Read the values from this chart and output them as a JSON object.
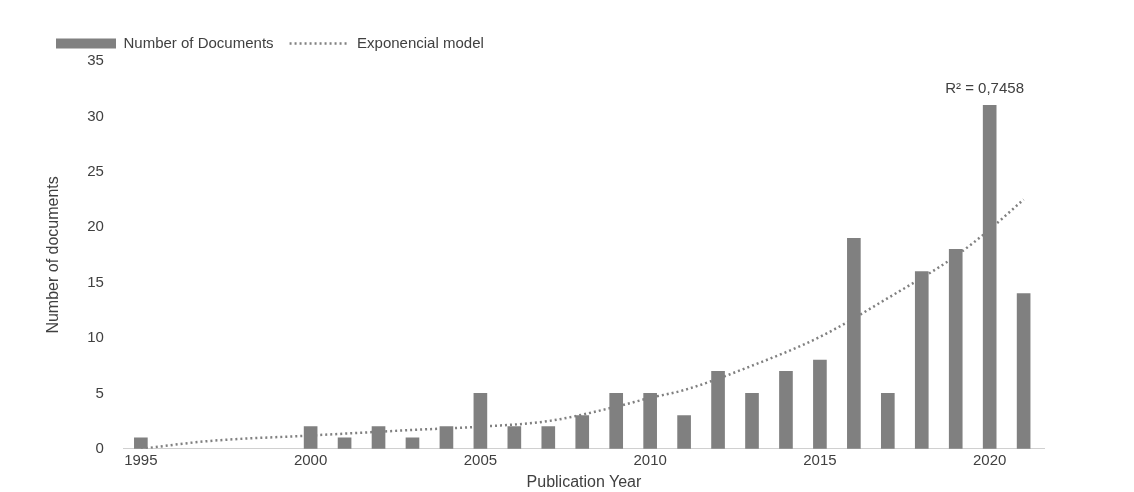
{
  "chart_data": {
    "type": "bar",
    "xlabel": "Publication Year",
    "ylabel": "Number of documents",
    "x": [
      1995,
      2000,
      2001,
      2002,
      2003,
      2004,
      2005,
      2006,
      2007,
      2008,
      2009,
      2010,
      2011,
      2012,
      2013,
      2014,
      2015,
      2016,
      2017,
      2018,
      2019,
      2020,
      2021
    ],
    "series": [
      {
        "name": "Number of Documents",
        "color": "#808080",
        "values": [
          1,
          2,
          1,
          2,
          1,
          2,
          5,
          2,
          2,
          3,
          5,
          5,
          3,
          7,
          5,
          7,
          8,
          19,
          5,
          16,
          18,
          31,
          14
        ]
      },
      {
        "name": "Exponencial model",
        "type": "line",
        "color": "#808080",
        "line_style": "dotted",
        "marker": "none",
        "x": [
          1995,
          1997,
          2000,
          2003,
          2005,
          2007,
          2009,
          2010,
          2011,
          2013,
          2015,
          2017,
          2019,
          2020,
          2021
        ],
        "values": [
          0,
          0.7,
          1.2,
          1.7,
          2.0,
          2.5,
          3.8,
          4.6,
          5.3,
          7.5,
          10.1,
          13.6,
          17.4,
          19.8,
          22.5
        ]
      }
    ],
    "xlim": [
      1994.5,
      2021.6
    ],
    "xticks": [
      1995,
      2000,
      2005,
      2010,
      2015,
      2020
    ],
    "ylim": [
      0,
      35
    ],
    "yticks": [
      0,
      5,
      10,
      15,
      20,
      25,
      30,
      35
    ],
    "annotations": [
      "R² = 0,7458"
    ],
    "grid": false,
    "legend": "top left"
  }
}
